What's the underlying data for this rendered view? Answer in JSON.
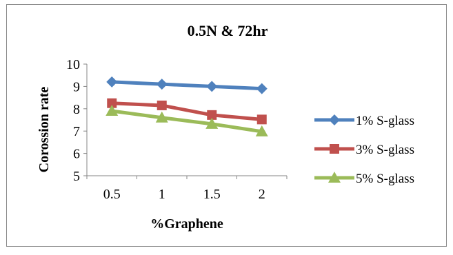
{
  "chart_data": {
    "type": "line",
    "title": "0.5N & 72hr",
    "xlabel": "%Graphene",
    "ylabel": "Corossion rate",
    "categories": [
      "0.5",
      "1",
      "1.5",
      "2"
    ],
    "ylim": [
      5,
      10
    ],
    "yticks": [
      "5",
      "6",
      "7",
      "8",
      "9",
      "10"
    ],
    "grid": false,
    "legend_position": "right",
    "series": [
      {
        "name": "1% S-glass",
        "values": [
          9.2,
          9.1,
          9.0,
          8.9
        ],
        "color": "#4F81BD",
        "marker": "diamond"
      },
      {
        "name": "3% S-glass",
        "values": [
          8.25,
          8.15,
          7.72,
          7.52
        ],
        "color": "#C0504D",
        "marker": "square"
      },
      {
        "name": "5% S-glass",
        "values": [
          7.9,
          7.6,
          7.32,
          6.98
        ],
        "color": "#9BBB59",
        "marker": "triangle"
      }
    ]
  }
}
